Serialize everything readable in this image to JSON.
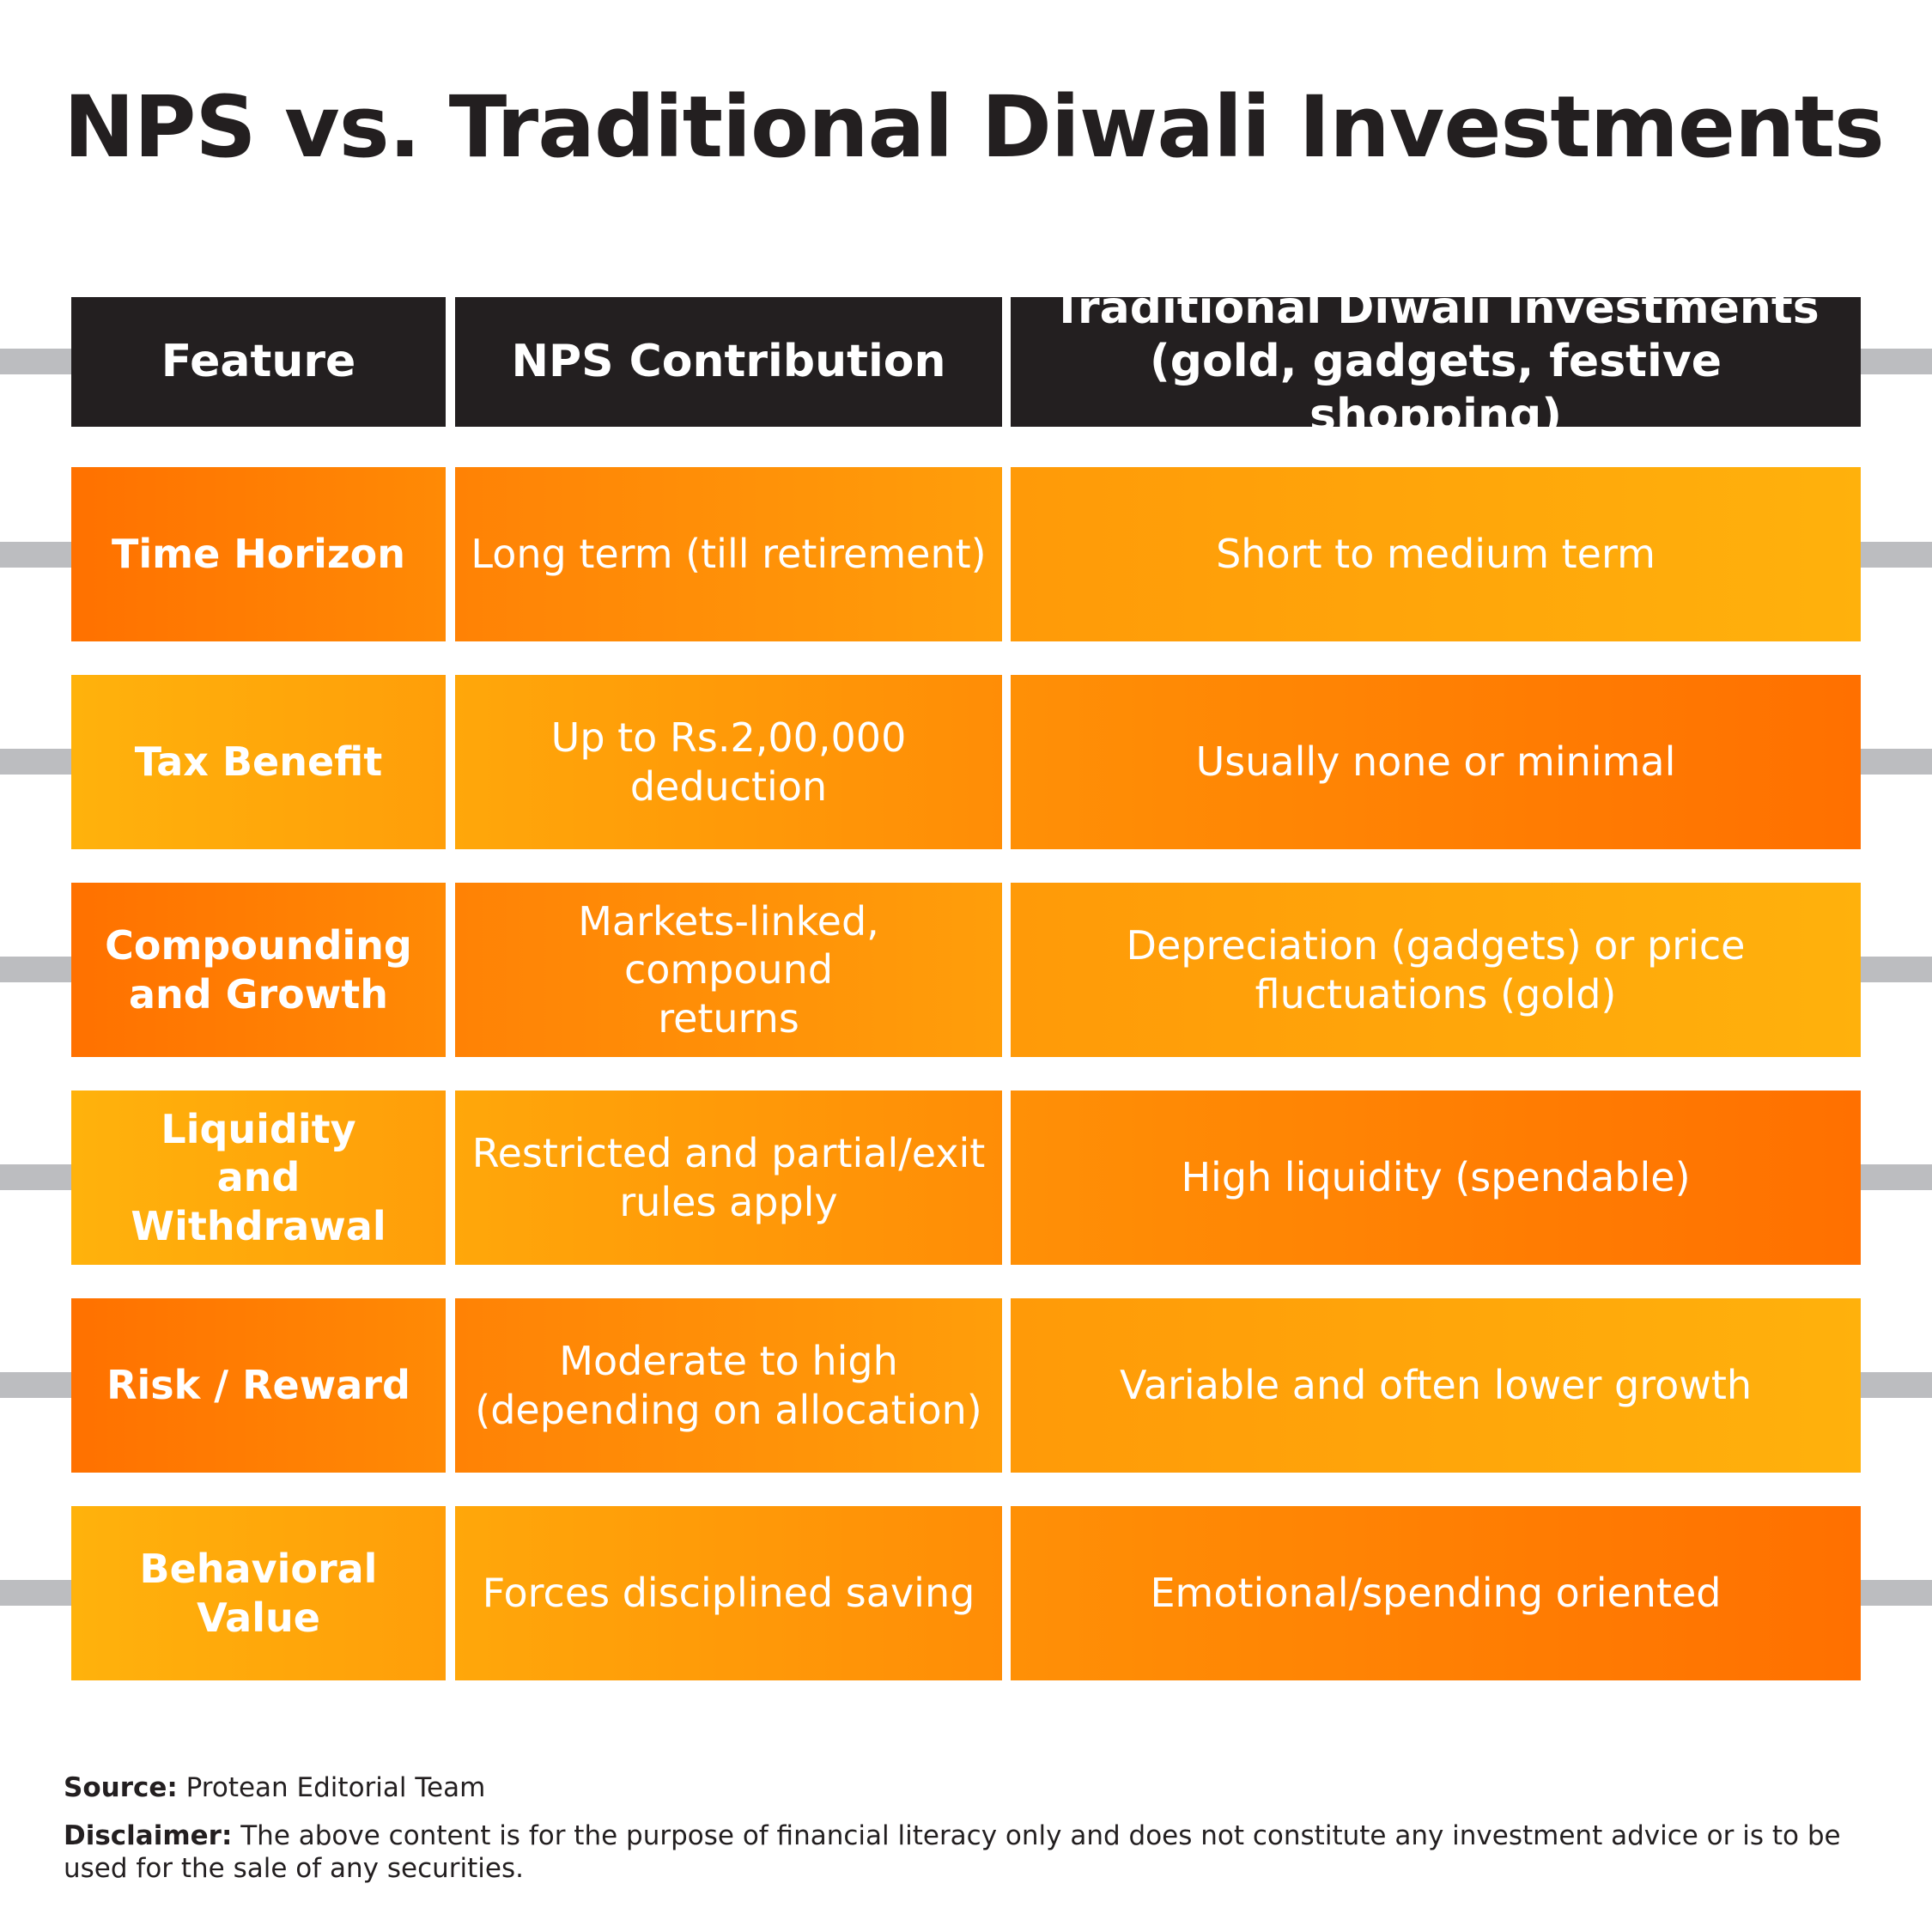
{
  "title": "NPS vs. Traditional Diwali Investments",
  "colors": {
    "header_bg": "#231f20",
    "orange_deep": "#ff7100",
    "orange_mid": "#ff9506",
    "orange_light": "#ffb10c",
    "rail": "#bcbdc0",
    "text_dark": "#231f20"
  },
  "table": {
    "headers": {
      "feature": "Feature",
      "nps": "NPS Contribution",
      "traditional": "Traditional Diwali Investments\n(gold, gadgets, festive shopping)"
    },
    "rows": [
      {
        "feature": "Time Horizon",
        "nps": "Long term (till retirement)",
        "traditional": "Short to medium term"
      },
      {
        "feature": "Tax Benefit",
        "nps": "Up to Rs.2,00,000\ndeduction",
        "traditional": "Usually none or minimal"
      },
      {
        "feature": "Compounding\nand Growth",
        "nps": "Markets-linked, compound\nreturns",
        "traditional": "Depreciation (gadgets) or price\nfluctuations (gold)"
      },
      {
        "feature": "Liquidity\nand Withdrawal",
        "nps": "Restricted and partial/exit\nrules apply",
        "traditional": "High liquidity (spendable)"
      },
      {
        "feature": "Risk / Reward",
        "nps": "Moderate to high\n(depending on allocation)",
        "traditional": "Variable and often lower growth"
      },
      {
        "feature": "Behavioral Value",
        "nps": "Forces disciplined saving",
        "traditional": "Emotional/spending oriented"
      }
    ]
  },
  "footer": {
    "source_label": "Source:",
    "source_text": "Protean Editorial Team",
    "disclaimer_label": "Disclaimer:",
    "disclaimer_text": "The above content is for the purpose of financial literacy only and does not constitute any investment advice or is to be used for the sale of any securities."
  }
}
